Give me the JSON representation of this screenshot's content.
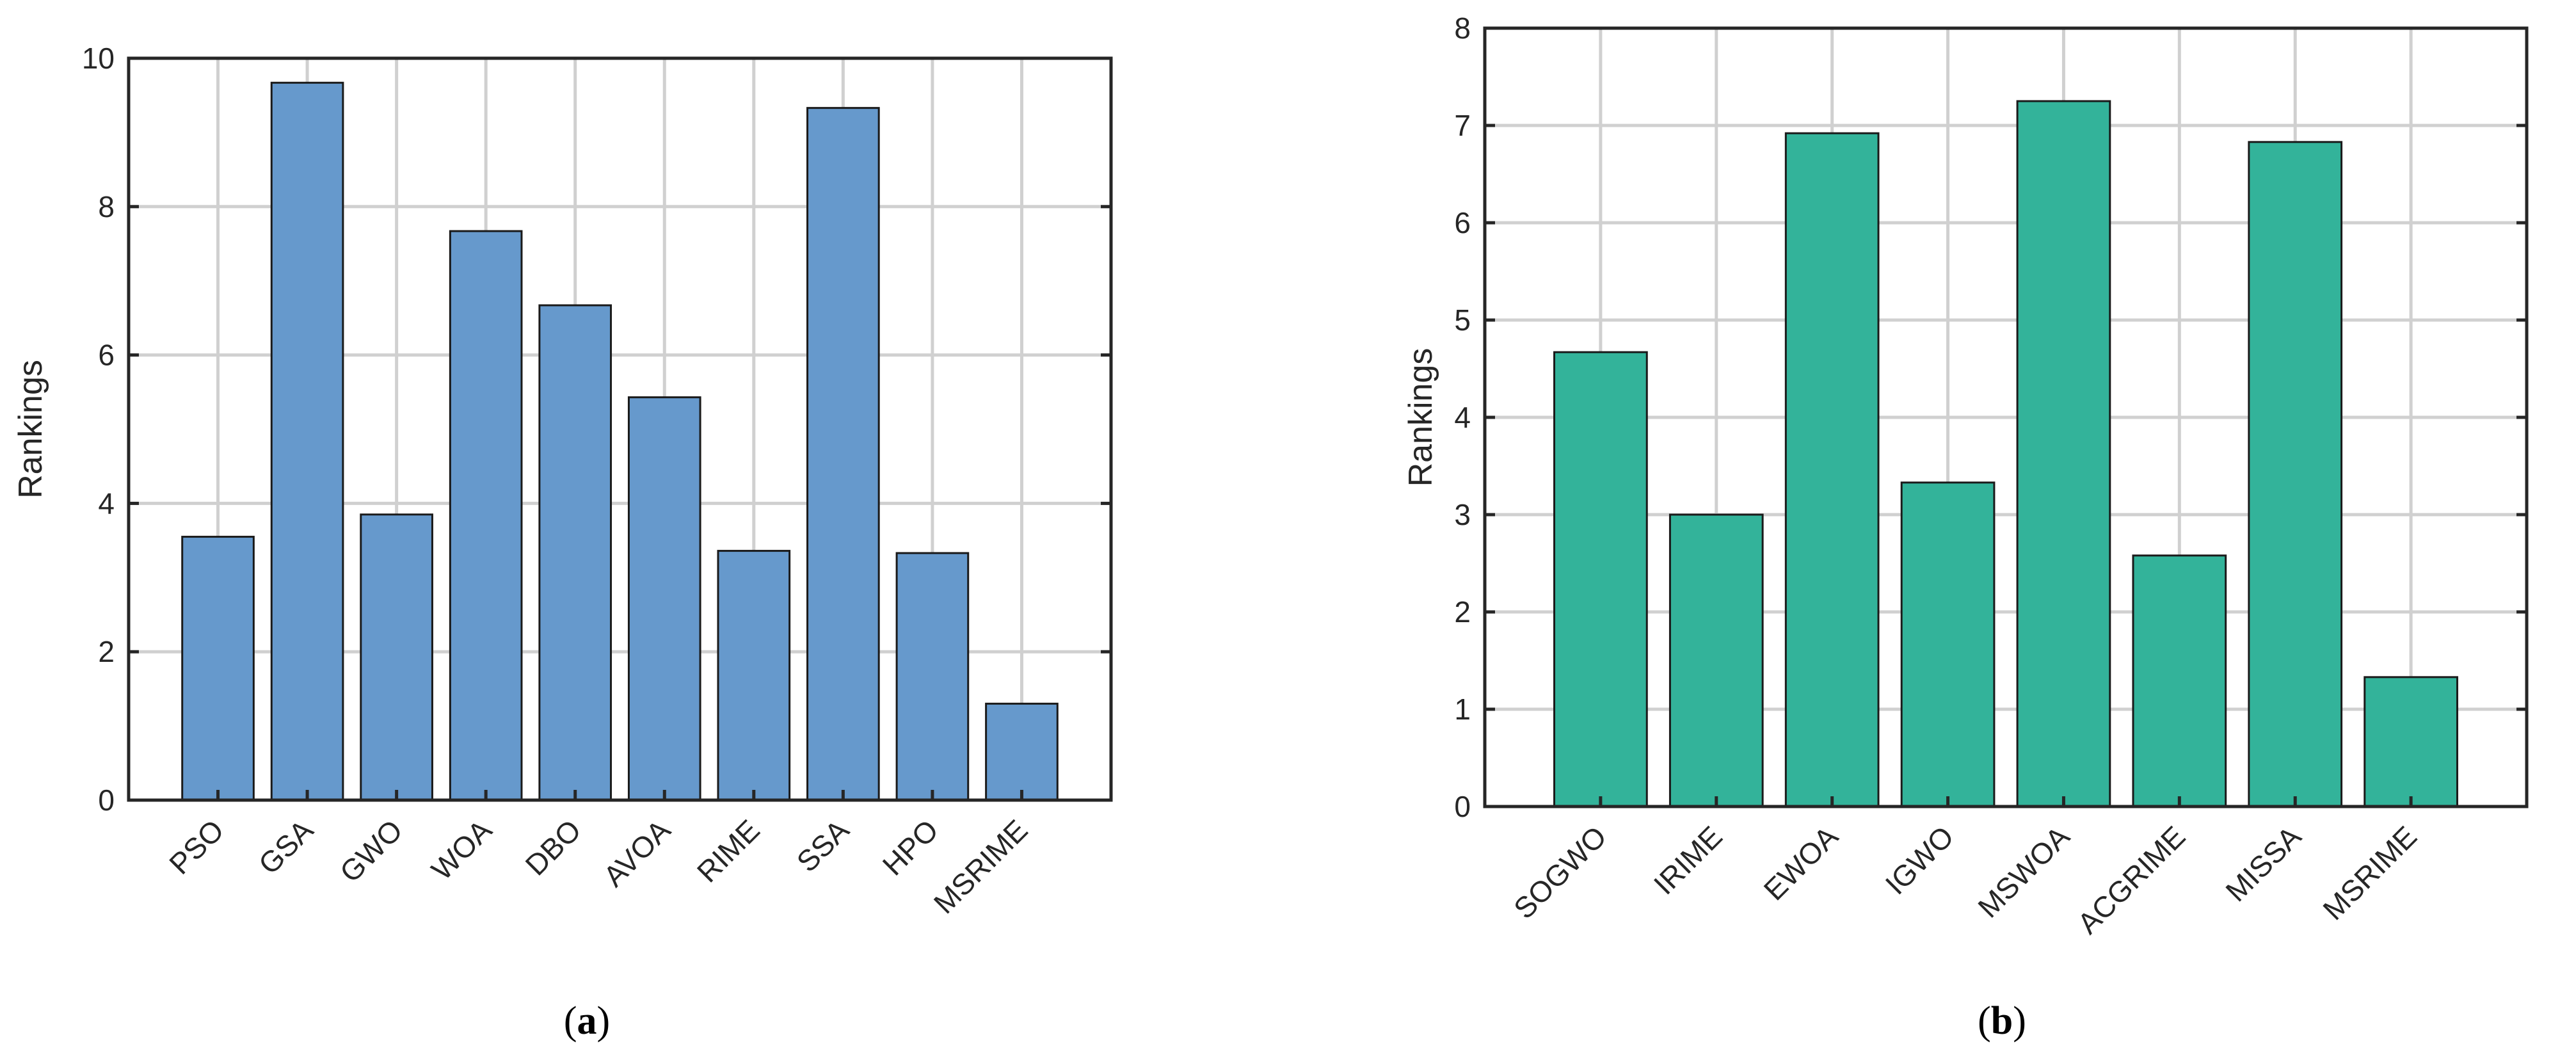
{
  "chart_data": [
    {
      "type": "bar",
      "panel_label": "a",
      "categories": [
        "PSO",
        "GSA",
        "GWO",
        "WOA",
        "DBO",
        "AVOA",
        "RIME",
        "SSA",
        "HPO",
        "MSRIME"
      ],
      "values": [
        3.55,
        9.67,
        3.85,
        7.67,
        6.67,
        5.43,
        3.36,
        9.33,
        3.33,
        1.3
      ],
      "ylabel": "Rankings",
      "xlabel": "",
      "ylim": [
        0,
        10
      ],
      "yticks": [
        "0",
        "2",
        "4",
        "6",
        "8",
        "10"
      ],
      "grid": true,
      "bar_color": "#6699CC"
    },
    {
      "type": "bar",
      "panel_label": "b",
      "categories": [
        "SOGWO",
        "IRIME",
        "EWOA",
        "IGWO",
        "MSWOA",
        "ACGRIME",
        "MISSA",
        "MSRIME"
      ],
      "values": [
        4.67,
        3.0,
        6.92,
        3.33,
        7.25,
        2.58,
        6.83,
        1.33
      ],
      "ylabel": "Rankings",
      "xlabel": "",
      "ylim": [
        0,
        8
      ],
      "yticks": [
        "0",
        "1",
        "2",
        "3",
        "4",
        "5",
        "6",
        "7",
        "8"
      ],
      "grid": true,
      "bar_color": "#33B39A"
    }
  ]
}
